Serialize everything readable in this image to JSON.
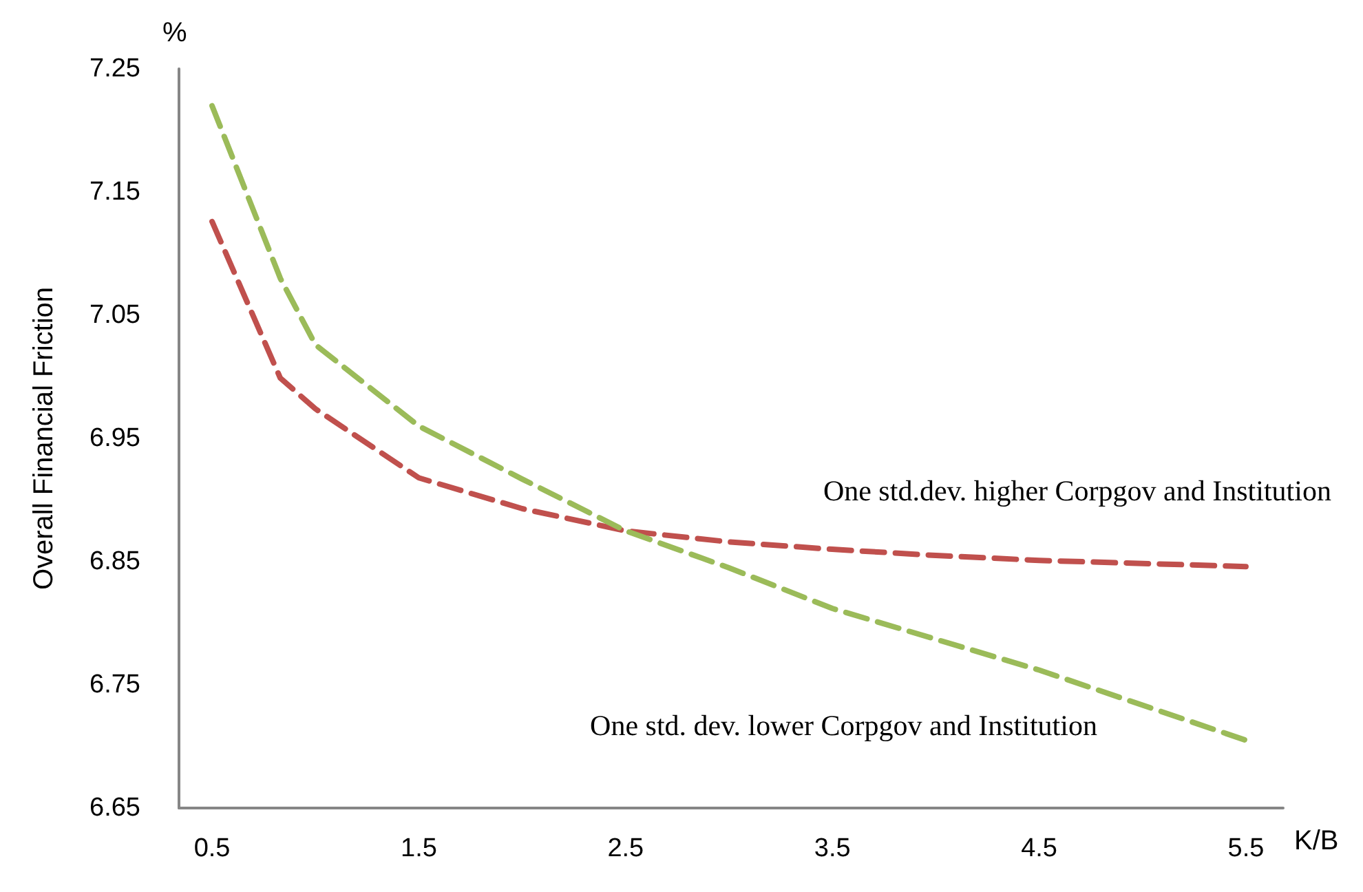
{
  "chart_data": {
    "type": "line",
    "xlabel": "K/B",
    "ylabel": "Overall Financial Friction",
    "annotations": [
      "%"
    ],
    "xlim": [
      0.34,
      5.68
    ],
    "ylim": [
      6.65,
      7.25
    ],
    "xticks": [
      0.5,
      1.5,
      2.5,
      3.5,
      4.5,
      5.5
    ],
    "yticks": [
      6.65,
      6.75,
      6.85,
      6.95,
      7.05,
      7.15,
      7.25
    ],
    "grid": false,
    "legend": false,
    "marker": "none",
    "line_style": "dashed",
    "series": [
      {
        "name": "One std.dev. higher Corpgov and Institution",
        "color": "#c0504d",
        "x": [
          0.5,
          0.83,
          1.0,
          1.5,
          2.0,
          2.5,
          3.0,
          3.5,
          4.0,
          4.5,
          5.5
        ],
        "values": [
          7.126,
          6.999,
          6.974,
          6.918,
          6.893,
          6.875,
          6.866,
          6.86,
          6.855,
          6.851,
          6.846
        ]
      },
      {
        "name": "One std. dev. lower Corpgov and Institution",
        "color": "#9bbb59",
        "x": [
          0.5,
          0.83,
          1.0,
          1.5,
          2.0,
          2.5,
          3.0,
          3.5,
          4.0,
          4.5,
          5.5
        ],
        "values": [
          7.22,
          7.08,
          7.026,
          6.96,
          6.917,
          6.875,
          6.845,
          6.812,
          6.787,
          6.762,
          6.705
        ]
      }
    ]
  }
}
